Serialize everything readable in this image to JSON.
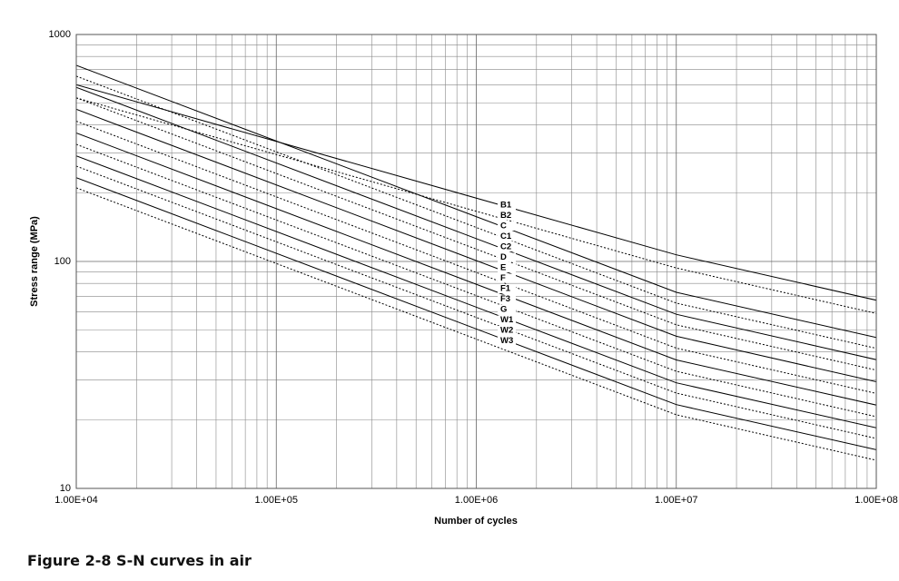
{
  "chart_data": {
    "type": "line",
    "x_label": "Number of cycles",
    "y_label": "Stress range (MPa)",
    "log_x": true,
    "log_y": true,
    "grid": true,
    "minor_grid": true,
    "xlim": [
      10000,
      100000000
    ],
    "ylim": [
      10,
      1000
    ],
    "xticks": [
      {
        "value": 10000,
        "label": "1.00E+04"
      },
      {
        "value": 100000,
        "label": "1.00E+05"
      },
      {
        "value": 1000000,
        "label": "1.00E+06"
      },
      {
        "value": 10000000,
        "label": "1.00E+07"
      },
      {
        "value": 100000000,
        "label": "1.00E+08"
      }
    ],
    "yticks": [
      10,
      100,
      1000
    ],
    "x": [
      10000,
      10000000,
      100000000
    ],
    "series": [
      {
        "name": "B1",
        "color": "#000000",
        "style": "solid",
        "values": [
          601,
          107,
          67.5
        ]
      },
      {
        "name": "B2",
        "color": "#000000",
        "style": "dotted",
        "values": [
          526,
          93.6,
          59.0
        ]
      },
      {
        "name": "C",
        "color": "#000000",
        "style": "solid",
        "values": [
          731,
          73.1,
          46.2
        ]
      },
      {
        "name": "C1",
        "color": "#000000",
        "style": "dotted",
        "values": [
          655,
          65.5,
          41.4
        ]
      },
      {
        "name": "C2",
        "color": "#000000",
        "style": "solid",
        "values": [
          585,
          58.5,
          36.9
        ]
      },
      {
        "name": "D",
        "color": "#000000",
        "style": "dotted",
        "values": [
          526,
          52.6,
          33.2
        ]
      },
      {
        "name": "E",
        "color": "#000000",
        "style": "solid",
        "values": [
          468,
          46.8,
          29.5
        ]
      },
      {
        "name": "F",
        "color": "#000000",
        "style": "dotted",
        "values": [
          415,
          41.5,
          26.2
        ]
      },
      {
        "name": "F1",
        "color": "#000000",
        "style": "solid",
        "values": [
          368,
          36.8,
          23.3
        ]
      },
      {
        "name": "F3",
        "color": "#000000",
        "style": "dotted",
        "values": [
          328,
          32.8,
          20.7
        ]
      },
      {
        "name": "G",
        "color": "#000000",
        "style": "solid",
        "values": [
          292,
          29.2,
          18.5
        ]
      },
      {
        "name": "W1",
        "color": "#000000",
        "style": "dotted",
        "values": [
          263,
          26.3,
          16.6
        ]
      },
      {
        "name": "W2",
        "color": "#000000",
        "style": "solid",
        "values": [
          234,
          23.4,
          14.8
        ]
      },
      {
        "name": "W3",
        "color": "#000000",
        "style": "dotted",
        "values": [
          211,
          21.1,
          13.3
        ]
      }
    ]
  },
  "caption": "Figure 2-8  S-N curves in air"
}
